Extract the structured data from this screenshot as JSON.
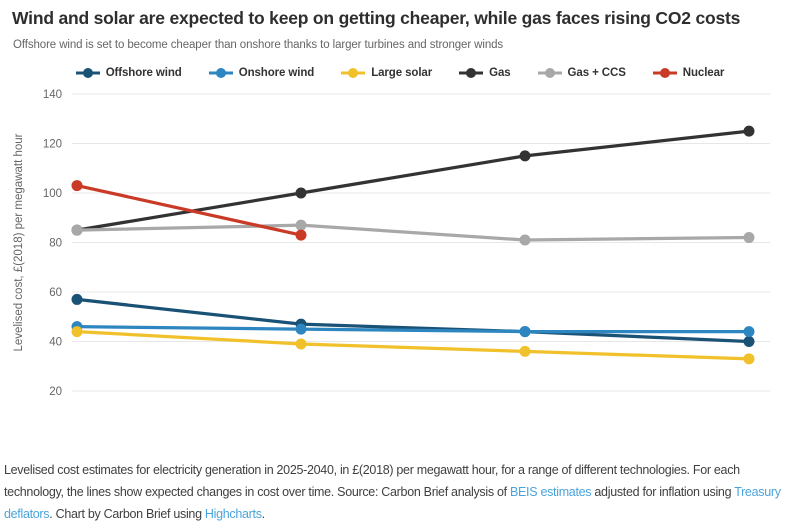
{
  "header": {
    "title": "Wind and solar are expected to keep on getting cheaper, while gas faces rising CO2 costs",
    "subtitle": "Offshore wind is set to become cheaper than onshore thanks to larger turbines and stronger winds"
  },
  "colors": {
    "title_text": "#2e2e2e",
    "subtitle_text": "#666666",
    "axis_text": "#666666",
    "gridline": "#e7e7e7",
    "legend_text": "#333333",
    "footer_text": "#3f3f3f",
    "link": "#4aa4dc"
  },
  "chart_data": {
    "type": "line",
    "x": [
      2025,
      2030,
      2035,
      2040
    ],
    "x_labels_visible": false,
    "ylabel": "Levelised cost, £(2018) per megawatt hour",
    "ylim": [
      20,
      140
    ],
    "yticks": [
      20,
      40,
      60,
      80,
      100,
      120,
      140
    ],
    "grid": true,
    "legend_position": "top",
    "series": [
      {
        "name": "Offshore wind",
        "color": "#1a5276",
        "values": [
          57,
          47,
          44,
          40
        ]
      },
      {
        "name": "Onshore wind",
        "color": "#2e86c1",
        "values": [
          46,
          45,
          44,
          44
        ]
      },
      {
        "name": "Large solar",
        "color": "#f1c12b",
        "values": [
          44,
          39,
          36,
          33
        ]
      },
      {
        "name": "Gas",
        "color": "#333333",
        "values": [
          85,
          100,
          115,
          125
        ]
      },
      {
        "name": "Gas + CCS",
        "color": "#a8a8a8",
        "values": [
          85,
          87,
          81,
          82
        ]
      },
      {
        "name": "Nuclear",
        "color": "#ca3b27",
        "values": [
          103,
          83,
          null,
          null
        ]
      }
    ]
  },
  "footer": {
    "segments": [
      {
        "text": "Levelised cost estimates for electricity generation in 2025-2040, in £(2018) per megawatt hour, for a range of different technologies. For each technology, the lines show expected changes in cost over time. Source: Carbon Brief analysis of ",
        "link": false
      },
      {
        "text": "BEIS estimates",
        "link": true,
        "name": "beis-estimates-link"
      },
      {
        "text": " adjusted for inflation using ",
        "link": false
      },
      {
        "text": "Treasury deflators",
        "link": true,
        "name": "treasury-deflators-link"
      },
      {
        "text": ". Chart by Carbon Brief using ",
        "link": false
      },
      {
        "text": "Highcharts",
        "link": true,
        "name": "highcharts-link"
      },
      {
        "text": ".",
        "link": false
      }
    ]
  }
}
